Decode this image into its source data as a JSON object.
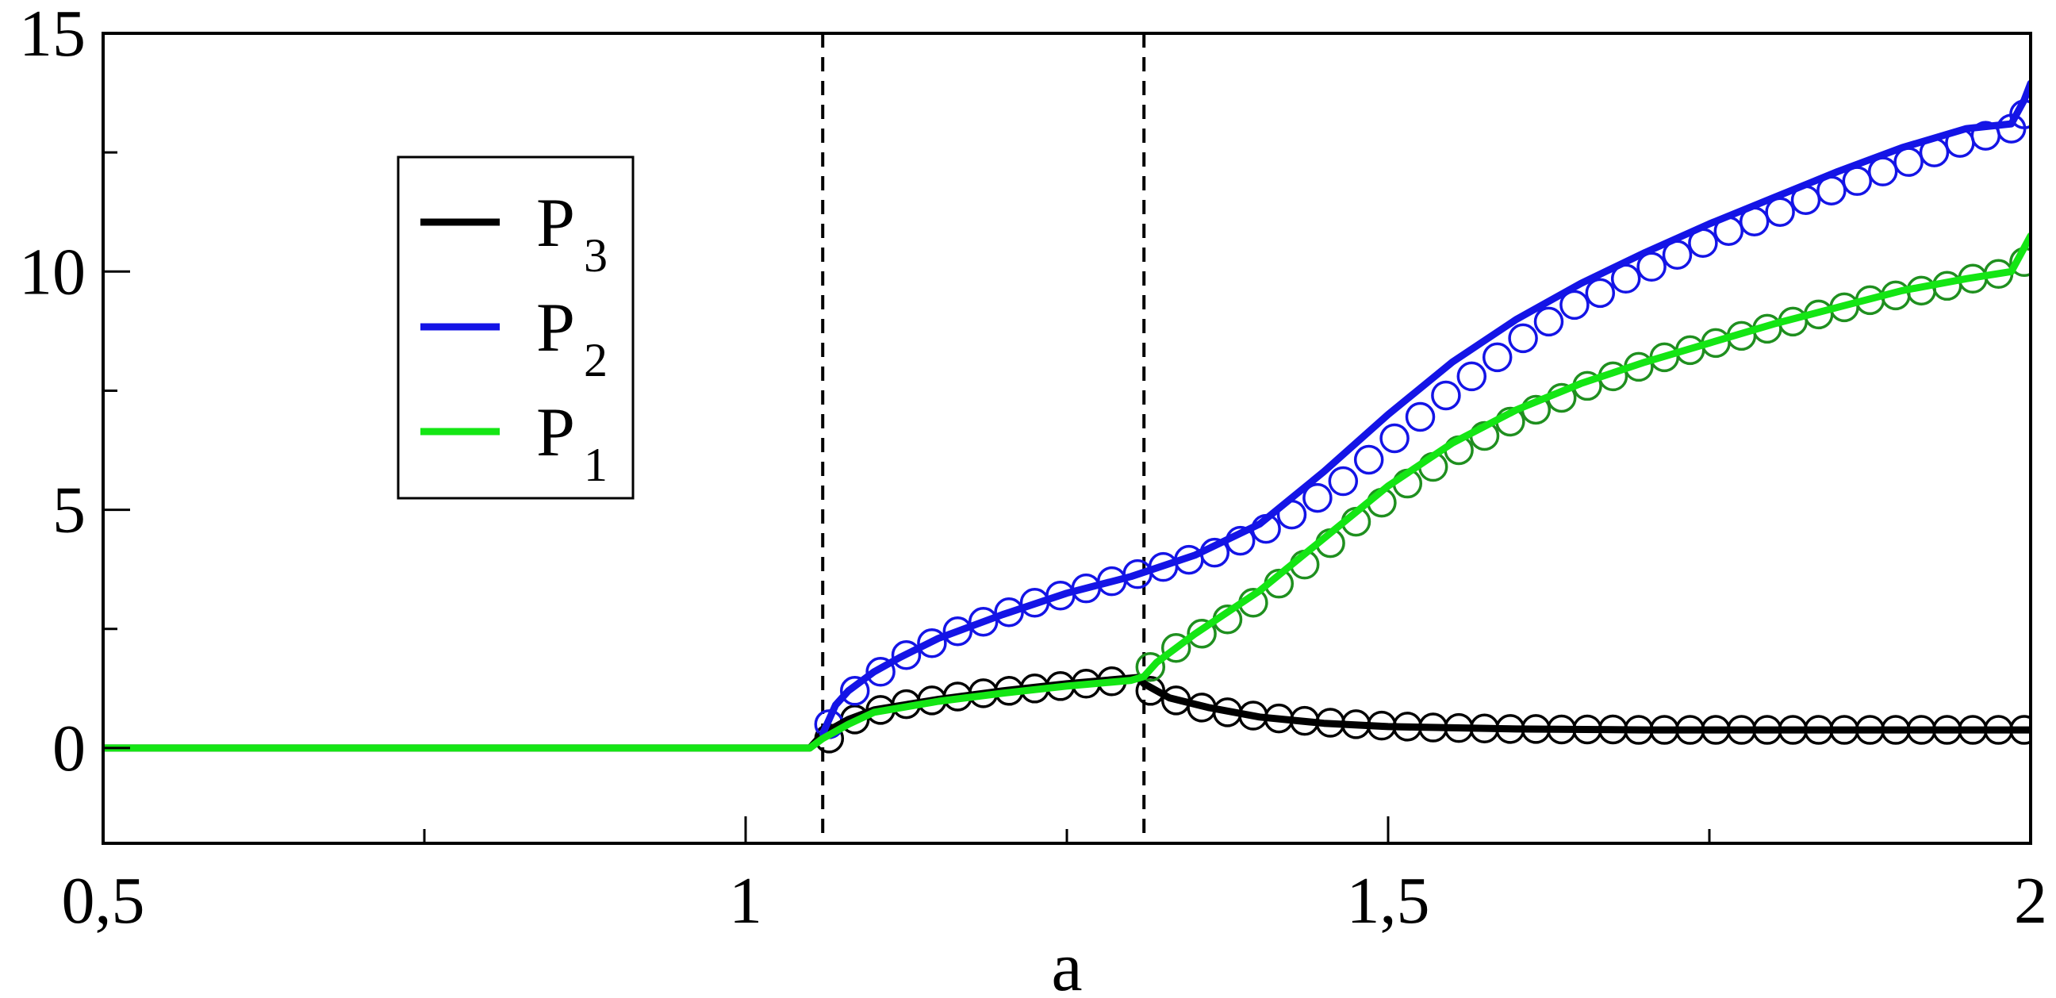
{
  "chart_data": {
    "type": "line",
    "title": "",
    "xlabel": "a",
    "ylabel": "",
    "xlim": [
      0.5,
      2.0
    ],
    "ylim": [
      -2,
      15
    ],
    "x_ticks": [
      {
        "value": 0.5,
        "label": "0,5"
      },
      {
        "value": 1.0,
        "label": "1"
      },
      {
        "value": 1.5,
        "label": "1,5"
      },
      {
        "value": 2.0,
        "label": "2"
      }
    ],
    "x_minor_ticks": [
      0.75,
      1.25,
      1.75
    ],
    "y_ticks": [
      {
        "value": 0,
        "label": "0"
      },
      {
        "value": 5,
        "label": "5"
      },
      {
        "value": 10,
        "label": "10"
      },
      {
        "value": 15,
        "label": "15"
      }
    ],
    "y_minor_ticks": [
      2.5,
      7.5,
      12.5
    ],
    "vlines": [
      1.06,
      1.31
    ],
    "legend": {
      "placement": "upper-left"
    },
    "series": [
      {
        "name": "P",
        "subscript": "3",
        "color": "#000000",
        "line": [
          [
            0.5,
            0
          ],
          [
            1.05,
            0
          ],
          [
            1.055,
            0.15
          ],
          [
            1.06,
            0.3
          ],
          [
            1.08,
            0.6
          ],
          [
            1.1,
            0.8
          ],
          [
            1.15,
            1.02
          ],
          [
            1.2,
            1.2
          ],
          [
            1.25,
            1.35
          ],
          [
            1.28,
            1.42
          ],
          [
            1.305,
            1.48
          ],
          [
            1.31,
            1.35
          ],
          [
            1.33,
            1.05
          ],
          [
            1.36,
            0.85
          ],
          [
            1.4,
            0.65
          ],
          [
            1.45,
            0.52
          ],
          [
            1.5,
            0.45
          ],
          [
            1.6,
            0.4
          ],
          [
            1.7,
            0.38
          ],
          [
            1.8,
            0.38
          ],
          [
            1.9,
            0.38
          ],
          [
            2.0,
            0.38
          ]
        ],
        "markers": [
          [
            1.065,
            0.2
          ],
          [
            1.085,
            0.6
          ],
          [
            1.105,
            0.8
          ],
          [
            1.125,
            0.92
          ],
          [
            1.145,
            1.0
          ],
          [
            1.165,
            1.08
          ],
          [
            1.185,
            1.15
          ],
          [
            1.205,
            1.2
          ],
          [
            1.225,
            1.25
          ],
          [
            1.245,
            1.3
          ],
          [
            1.265,
            1.35
          ],
          [
            1.285,
            1.4
          ],
          [
            1.315,
            1.2
          ],
          [
            1.335,
            1.0
          ],
          [
            1.355,
            0.85
          ],
          [
            1.375,
            0.75
          ],
          [
            1.395,
            0.68
          ],
          [
            1.415,
            0.62
          ],
          [
            1.435,
            0.57
          ],
          [
            1.455,
            0.53
          ],
          [
            1.475,
            0.5
          ],
          [
            1.495,
            0.47
          ],
          [
            1.515,
            0.45
          ],
          [
            1.535,
            0.43
          ],
          [
            1.555,
            0.42
          ],
          [
            1.575,
            0.41
          ],
          [
            1.595,
            0.4
          ],
          [
            1.615,
            0.4
          ],
          [
            1.635,
            0.39
          ],
          [
            1.655,
            0.39
          ],
          [
            1.675,
            0.39
          ],
          [
            1.695,
            0.38
          ],
          [
            1.715,
            0.38
          ],
          [
            1.735,
            0.38
          ],
          [
            1.755,
            0.38
          ],
          [
            1.775,
            0.38
          ],
          [
            1.795,
            0.38
          ],
          [
            1.815,
            0.38
          ],
          [
            1.835,
            0.38
          ],
          [
            1.855,
            0.38
          ],
          [
            1.875,
            0.38
          ],
          [
            1.895,
            0.38
          ],
          [
            1.915,
            0.38
          ],
          [
            1.935,
            0.38
          ],
          [
            1.955,
            0.38
          ],
          [
            1.975,
            0.38
          ],
          [
            1.995,
            0.38
          ]
        ]
      },
      {
        "name": "P",
        "subscript": "2",
        "color": "#1414e6",
        "line": [
          [
            1.06,
            0.3
          ],
          [
            1.065,
            0.6
          ],
          [
            1.07,
            0.9
          ],
          [
            1.08,
            1.2
          ],
          [
            1.1,
            1.6
          ],
          [
            1.12,
            1.9
          ],
          [
            1.15,
            2.3
          ],
          [
            1.2,
            2.8
          ],
          [
            1.25,
            3.25
          ],
          [
            1.3,
            3.6
          ],
          [
            1.35,
            4.05
          ],
          [
            1.4,
            4.7
          ],
          [
            1.45,
            5.8
          ],
          [
            1.5,
            7.0
          ],
          [
            1.55,
            8.1
          ],
          [
            1.6,
            9.0
          ],
          [
            1.65,
            9.75
          ],
          [
            1.7,
            10.4
          ],
          [
            1.75,
            11.0
          ],
          [
            1.8,
            11.55
          ],
          [
            1.85,
            12.1
          ],
          [
            1.9,
            12.6
          ],
          [
            1.95,
            13.0
          ],
          [
            1.985,
            13.1
          ],
          [
            1.995,
            13.6
          ],
          [
            2.0,
            13.95
          ]
        ],
        "markers": [
          [
            1.065,
            0.5
          ],
          [
            1.085,
            1.2
          ],
          [
            1.105,
            1.6
          ],
          [
            1.125,
            1.95
          ],
          [
            1.145,
            2.2
          ],
          [
            1.165,
            2.45
          ],
          [
            1.185,
            2.65
          ],
          [
            1.205,
            2.85
          ],
          [
            1.225,
            3.05
          ],
          [
            1.245,
            3.2
          ],
          [
            1.265,
            3.35
          ],
          [
            1.285,
            3.5
          ],
          [
            1.305,
            3.65
          ],
          [
            1.325,
            3.8
          ],
          [
            1.345,
            3.95
          ],
          [
            1.365,
            4.1
          ],
          [
            1.385,
            4.35
          ],
          [
            1.405,
            4.6
          ],
          [
            1.425,
            4.9
          ],
          [
            1.445,
            5.25
          ],
          [
            1.465,
            5.6
          ],
          [
            1.485,
            6.05
          ],
          [
            1.505,
            6.5
          ],
          [
            1.525,
            6.95
          ],
          [
            1.545,
            7.4
          ],
          [
            1.565,
            7.8
          ],
          [
            1.585,
            8.2
          ],
          [
            1.605,
            8.6
          ],
          [
            1.625,
            8.95
          ],
          [
            1.645,
            9.3
          ],
          [
            1.665,
            9.55
          ],
          [
            1.685,
            9.85
          ],
          [
            1.705,
            10.1
          ],
          [
            1.725,
            10.35
          ],
          [
            1.745,
            10.6
          ],
          [
            1.765,
            10.85
          ],
          [
            1.785,
            11.05
          ],
          [
            1.805,
            11.25
          ],
          [
            1.825,
            11.5
          ],
          [
            1.845,
            11.7
          ],
          [
            1.865,
            11.9
          ],
          [
            1.885,
            12.1
          ],
          [
            1.905,
            12.3
          ],
          [
            1.925,
            12.5
          ],
          [
            1.945,
            12.7
          ],
          [
            1.965,
            12.85
          ],
          [
            1.985,
            13.0
          ],
          [
            1.995,
            13.3
          ]
        ]
      },
      {
        "name": "P",
        "subscript": "1",
        "color": "#14e614",
        "marker_color": "#1f8f1f",
        "line": [
          [
            0.5,
            0
          ],
          [
            1.05,
            0
          ],
          [
            1.06,
            0.2
          ],
          [
            1.08,
            0.5
          ],
          [
            1.1,
            0.75
          ],
          [
            1.15,
            0.98
          ],
          [
            1.2,
            1.15
          ],
          [
            1.25,
            1.3
          ],
          [
            1.3,
            1.42
          ],
          [
            1.31,
            1.5
          ],
          [
            1.32,
            1.8
          ],
          [
            1.35,
            2.4
          ],
          [
            1.4,
            3.3
          ],
          [
            1.45,
            4.4
          ],
          [
            1.5,
            5.5
          ],
          [
            1.55,
            6.4
          ],
          [
            1.6,
            7.1
          ],
          [
            1.65,
            7.65
          ],
          [
            1.7,
            8.1
          ],
          [
            1.75,
            8.5
          ],
          [
            1.8,
            8.9
          ],
          [
            1.85,
            9.25
          ],
          [
            1.9,
            9.6
          ],
          [
            1.95,
            9.85
          ],
          [
            1.985,
            10.0
          ],
          [
            1.995,
            10.5
          ],
          [
            2.0,
            10.75
          ]
        ],
        "markers": [
          [
            1.315,
            1.7
          ],
          [
            1.335,
            2.1
          ],
          [
            1.355,
            2.4
          ],
          [
            1.375,
            2.7
          ],
          [
            1.395,
            3.05
          ],
          [
            1.415,
            3.45
          ],
          [
            1.435,
            3.85
          ],
          [
            1.455,
            4.3
          ],
          [
            1.475,
            4.75
          ],
          [
            1.495,
            5.15
          ],
          [
            1.515,
            5.55
          ],
          [
            1.535,
            5.9
          ],
          [
            1.555,
            6.25
          ],
          [
            1.575,
            6.55
          ],
          [
            1.595,
            6.85
          ],
          [
            1.615,
            7.1
          ],
          [
            1.635,
            7.35
          ],
          [
            1.655,
            7.6
          ],
          [
            1.675,
            7.8
          ],
          [
            1.695,
            8.0
          ],
          [
            1.715,
            8.2
          ],
          [
            1.735,
            8.35
          ],
          [
            1.755,
            8.5
          ],
          [
            1.775,
            8.65
          ],
          [
            1.795,
            8.8
          ],
          [
            1.815,
            8.95
          ],
          [
            1.835,
            9.1
          ],
          [
            1.855,
            9.25
          ],
          [
            1.875,
            9.4
          ],
          [
            1.895,
            9.5
          ],
          [
            1.915,
            9.6
          ],
          [
            1.935,
            9.7
          ],
          [
            1.955,
            9.85
          ],
          [
            1.975,
            9.95
          ],
          [
            1.995,
            10.2
          ]
        ]
      }
    ]
  }
}
